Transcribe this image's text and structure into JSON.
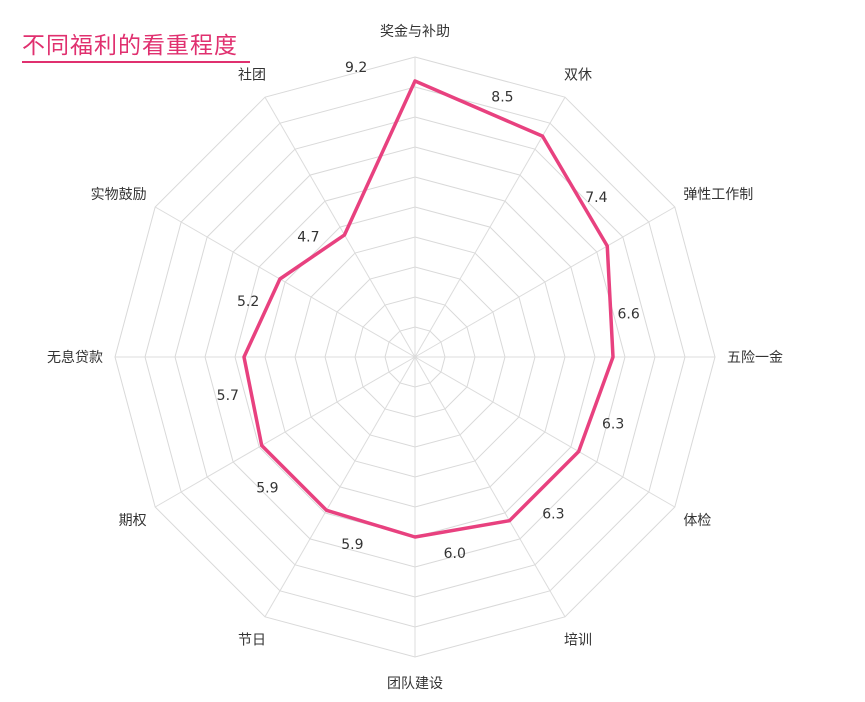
{
  "chart_data": {
    "type": "radar",
    "title": "不同福利的看重程度",
    "scale_max": 10,
    "rings": 10,
    "grid": true,
    "line_color": "#e8417f",
    "title_color": "#e0306f",
    "categories": [
      "奖金与补助",
      "双休",
      "弹性工作制",
      "五险一金",
      "体检",
      "培训",
      "团队建设",
      "节日",
      "期权",
      "无息贷款",
      "实物鼓励",
      "社团"
    ],
    "values": [
      9.2,
      8.5,
      7.4,
      6.6,
      6.3,
      6.3,
      6.0,
      5.9,
      5.9,
      5.7,
      5.2,
      4.7
    ],
    "value_labels": [
      "9.2",
      "8.5",
      "7.4",
      "6.6",
      "6.3",
      "6.3",
      "6.0",
      "5.9",
      "5.9",
      "5.7",
      "5.2",
      "4.7"
    ]
  }
}
